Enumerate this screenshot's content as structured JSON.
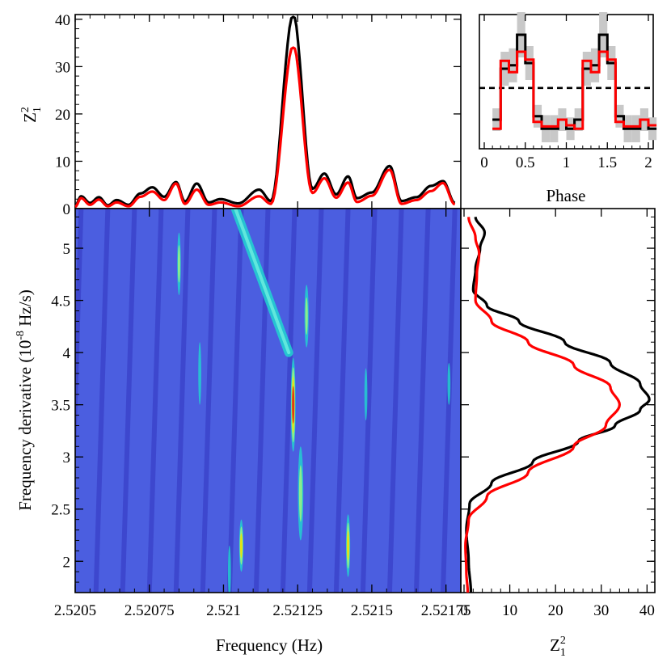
{
  "chart_data": [
    {
      "panel": "top",
      "type": "line",
      "ylabel": "Z",
      "ylabel_sub": "1",
      "ylabel_sup": "2",
      "xlim": [
        2.5205,
        2.5218
      ],
      "ylim": [
        0,
        41
      ],
      "yticks": [
        "0",
        "10",
        "20",
        "30",
        "40"
      ],
      "series": [
        {
          "color": "#000000",
          "peak": {
            "x": 2.521235,
            "y": 40.5
          },
          "points": [
            [
              2.5205,
              0.6
            ],
            [
              2.52052,
              2.6
            ],
            [
              2.52055,
              1.2
            ],
            [
              2.52058,
              2.4
            ],
            [
              2.52061,
              0.7
            ],
            [
              2.52064,
              1.8
            ],
            [
              2.52068,
              0.8
            ],
            [
              2.52072,
              3.2
            ],
            [
              2.52076,
              4.5
            ],
            [
              2.5208,
              2.5
            ],
            [
              2.52084,
              5.6
            ],
            [
              2.52087,
              1.5
            ],
            [
              2.52091,
              5.3
            ],
            [
              2.52095,
              1.3
            ],
            [
              2.52099,
              2.0
            ],
            [
              2.52105,
              1.1
            ],
            [
              2.52112,
              4.0
            ],
            [
              2.52116,
              1.6
            ],
            [
              2.521235,
              40.5
            ],
            [
              2.5213,
              4.2
            ],
            [
              2.52134,
              7.4
            ],
            [
              2.52138,
              3.0
            ],
            [
              2.52142,
              6.8
            ],
            [
              2.52145,
              2.2
            ],
            [
              2.5215,
              3.4
            ],
            [
              2.52156,
              9.0
            ],
            [
              2.5216,
              1.6
            ],
            [
              2.52165,
              2.4
            ],
            [
              2.5217,
              4.8
            ],
            [
              2.52174,
              5.8
            ],
            [
              2.52178,
              1.2
            ]
          ]
        },
        {
          "color": "#ff0000",
          "peak": {
            "x": 2.521235,
            "y": 34.0
          },
          "points": [
            [
              2.5205,
              0.4
            ],
            [
              2.52052,
              2.2
            ],
            [
              2.52055,
              0.8
            ],
            [
              2.52058,
              1.9
            ],
            [
              2.52061,
              0.5
            ],
            [
              2.52064,
              1.3
            ],
            [
              2.52068,
              0.5
            ],
            [
              2.52072,
              2.5
            ],
            [
              2.52076,
              3.6
            ],
            [
              2.5208,
              1.8
            ],
            [
              2.52084,
              5.3
            ],
            [
              2.52087,
              1.0
            ],
            [
              2.52091,
              4.0
            ],
            [
              2.52095,
              0.8
            ],
            [
              2.52099,
              1.3
            ],
            [
              2.52105,
              0.5
            ],
            [
              2.52112,
              2.6
            ],
            [
              2.52116,
              1.0
            ],
            [
              2.521235,
              34.0
            ],
            [
              2.5213,
              3.3
            ],
            [
              2.52134,
              6.4
            ],
            [
              2.52138,
              2.3
            ],
            [
              2.52142,
              5.5
            ],
            [
              2.52145,
              1.4
            ],
            [
              2.5215,
              2.7
            ],
            [
              2.52156,
              8.2
            ],
            [
              2.5216,
              1.0
            ],
            [
              2.52165,
              1.8
            ],
            [
              2.5217,
              3.7
            ],
            [
              2.52174,
              5.4
            ],
            [
              2.52178,
              0.9
            ]
          ]
        }
      ]
    },
    {
      "panel": "inset",
      "type": "line",
      "xlabel": "Phase",
      "xlim": [
        0,
        2
      ],
      "xticks": [
        "0",
        "0.5",
        "1",
        "1.5",
        "2"
      ],
      "mean_level": 0.48,
      "phase_bins": [
        0.1,
        0.2,
        0.3,
        0.4,
        0.5,
        0.6,
        0.7,
        0.8,
        0.9,
        1.0
      ],
      "series": [
        {
          "color": "#000000",
          "values": [
            0.2,
            0.65,
            0.68,
            0.95,
            0.7,
            0.23,
            0.12,
            0.12,
            0.2,
            0.12
          ]
        },
        {
          "color": "#ff0000",
          "values": [
            0.12,
            0.72,
            0.62,
            0.8,
            0.73,
            0.18,
            0.14,
            0.14,
            0.2,
            0.15
          ]
        }
      ],
      "error_band": [
        0.1,
        0.15,
        0.15,
        0.2,
        0.15,
        0.1,
        0.12,
        0.12,
        0.1,
        0.1
      ]
    },
    {
      "panel": "main",
      "type": "heatmap",
      "xlabel": "Frequency (Hz)",
      "ylabel": "Frequency derivative (10",
      "ylabel_sup": "-8",
      "ylabel_tail": " Hz/s)",
      "xlim": [
        2.5205,
        2.5218
      ],
      "ylim": [
        1.7,
        5.38
      ],
      "xticks": [
        "2.5205",
        "2.52075",
        "2.521",
        "2.52125",
        "2.5215",
        "2.52175"
      ],
      "yticks": [
        "2",
        "2.5",
        "3",
        "3.5",
        "4",
        "4.5",
        "5"
      ],
      "peak": {
        "x": 2.521235,
        "y": 3.5
      },
      "blobs": [
        {
          "x": 2.521235,
          "y": 3.5,
          "len": 0.45,
          "width": 8e-06,
          "level": 1.0
        },
        {
          "x": 2.52126,
          "y": 2.65,
          "len": 0.45,
          "width": 9e-06,
          "level": 0.5
        },
        {
          "x": 2.52128,
          "y": 4.35,
          "len": 0.3,
          "width": 7e-06,
          "level": 0.45
        },
        {
          "x": 2.52106,
          "y": 2.15,
          "len": 0.25,
          "width": 7e-06,
          "level": 0.65
        },
        {
          "x": 2.52142,
          "y": 2.15,
          "len": 0.3,
          "width": 7e-06,
          "level": 0.6
        },
        {
          "x": 2.52085,
          "y": 4.85,
          "len": 0.3,
          "width": 6e-06,
          "level": 0.45
        },
        {
          "x": 2.52092,
          "y": 3.8,
          "len": 0.3,
          "width": 5e-06,
          "level": 0.3
        },
        {
          "x": 2.52176,
          "y": 3.7,
          "len": 0.2,
          "width": 5e-06,
          "level": 0.3
        },
        {
          "x": 2.52148,
          "y": 3.6,
          "len": 0.25,
          "width": 5e-06,
          "level": 0.25
        },
        {
          "x": 2.52102,
          "y": 1.9,
          "len": 0.25,
          "width": 5e-06,
          "level": 0.25
        }
      ],
      "ridge": {
        "x1": 2.52104,
        "y1": 5.38,
        "x2": 2.52122,
        "y2": 4.0,
        "level": 0.5
      },
      "palette": [
        "#2c2cb8",
        "#4b5ee0",
        "#20d6d0",
        "#90f088",
        "#e8e010",
        "#e23010"
      ]
    },
    {
      "panel": "right",
      "type": "line",
      "xlabel": "Z",
      "xlabel_sub": "1",
      "xlabel_sup": "2",
      "xlim": [
        0,
        41
      ],
      "xticks": [
        "0",
        "10",
        "20",
        "30",
        "40"
      ],
      "series": [
        {
          "color": "#000000",
          "peak": {
            "x": 40.5,
            "y": 3.55
          },
          "points": [
            [
              1.5,
              1.7
            ],
            [
              1.0,
              2.0
            ],
            [
              0.5,
              2.3
            ],
            [
              1.2,
              2.55
            ],
            [
              6,
              2.75
            ],
            [
              15,
              2.95
            ],
            [
              25,
              3.15
            ],
            [
              33,
              3.3
            ],
            [
              38.5,
              3.45
            ],
            [
              40.5,
              3.55
            ],
            [
              38.5,
              3.7
            ],
            [
              32,
              3.9
            ],
            [
              22,
              4.1
            ],
            [
              12,
              4.3
            ],
            [
              5,
              4.45
            ],
            [
              2,
              4.6
            ],
            [
              2.5,
              4.8
            ],
            [
              3.5,
              5.0
            ],
            [
              4.5,
              5.15
            ],
            [
              2.5,
              5.3
            ]
          ]
        },
        {
          "color": "#ff0000",
          "peak": {
            "x": 34.0,
            "y": 3.5
          },
          "points": [
            [
              0.8,
              1.7
            ],
            [
              0.5,
              1.9
            ],
            [
              0.3,
              2.15
            ],
            [
              1.0,
              2.4
            ],
            [
              5,
              2.62
            ],
            [
              14,
              2.85
            ],
            [
              24,
              3.1
            ],
            [
              31,
              3.3
            ],
            [
              34,
              3.5
            ],
            [
              32,
              3.67
            ],
            [
              24,
              3.88
            ],
            [
              14,
              4.1
            ],
            [
              6,
              4.3
            ],
            [
              2.5,
              4.5
            ],
            [
              2.8,
              4.75
            ],
            [
              3.3,
              4.95
            ],
            [
              2.5,
              5.1
            ],
            [
              1,
              5.3
            ]
          ]
        }
      ]
    }
  ]
}
